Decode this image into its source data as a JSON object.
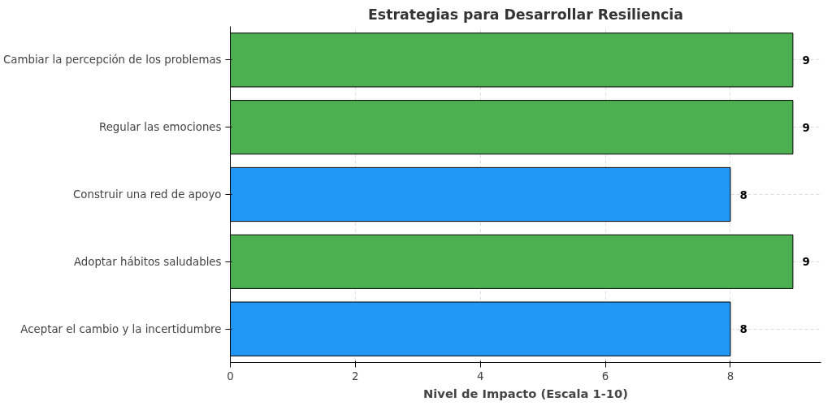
{
  "chart_data": {
    "type": "bar",
    "orientation": "horizontal",
    "title": "Estrategias para Desarrollar Resiliencia",
    "xlabel": "Nivel de Impacto (Escala 1-10)",
    "categories": [
      "Cambiar la percepción de los problemas",
      "Regular las emociones",
      "Construir una red de apoyo",
      "Adoptar hábitos saludables",
      "Aceptar el cambio y la incertidumbre"
    ],
    "values": [
      9,
      9,
      8,
      9,
      8
    ],
    "colors": [
      "#4caf50",
      "#4caf50",
      "#2196f3",
      "#4caf50",
      "#2196f3"
    ],
    "xlim": [
      0,
      9.45
    ],
    "xticks": [
      0,
      2,
      4,
      6,
      8
    ],
    "grid": true,
    "data_labels": true
  }
}
